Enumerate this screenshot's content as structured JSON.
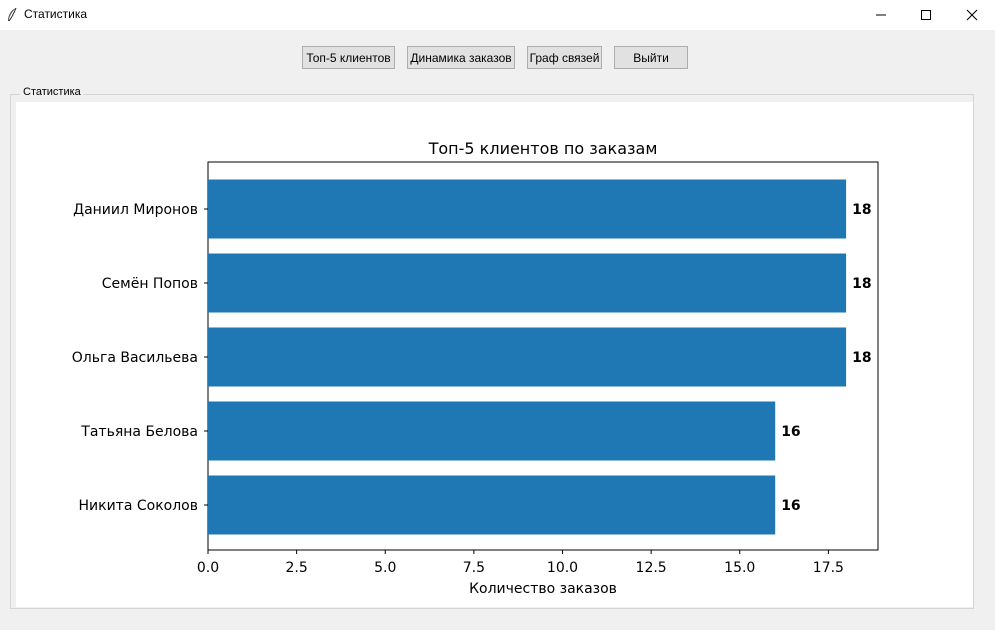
{
  "window": {
    "title": "Статистика"
  },
  "toolbar": {
    "top5_label": "Топ-5 клиентов",
    "dynamics_label": "Динамика заказов",
    "graph_label": "Граф связей",
    "exit_label": "Выйти"
  },
  "frame": {
    "label": "Статистика"
  },
  "chart_data": {
    "type": "bar",
    "orientation": "horizontal",
    "title": "Топ-5 клиентов по заказам",
    "xlabel": "Количество заказов",
    "ylabel": "",
    "categories": [
      "Даниил Миронов",
      "Семён Попов",
      "Ольга Васильева",
      "Татьяна Белова",
      "Никита Соколов"
    ],
    "values": [
      18,
      18,
      18,
      16,
      16
    ],
    "data_labels": [
      "18",
      "18",
      "18",
      "16",
      "16"
    ],
    "xlim": [
      0,
      18.9
    ],
    "xticks": [
      0.0,
      2.5,
      5.0,
      7.5,
      10.0,
      12.5,
      15.0,
      17.5
    ],
    "xtick_labels": [
      "0.0",
      "2.5",
      "5.0",
      "7.5",
      "10.0",
      "12.5",
      "15.0",
      "17.5"
    ],
    "bar_color": "#1f77b4",
    "grid": false,
    "legend": "none"
  }
}
